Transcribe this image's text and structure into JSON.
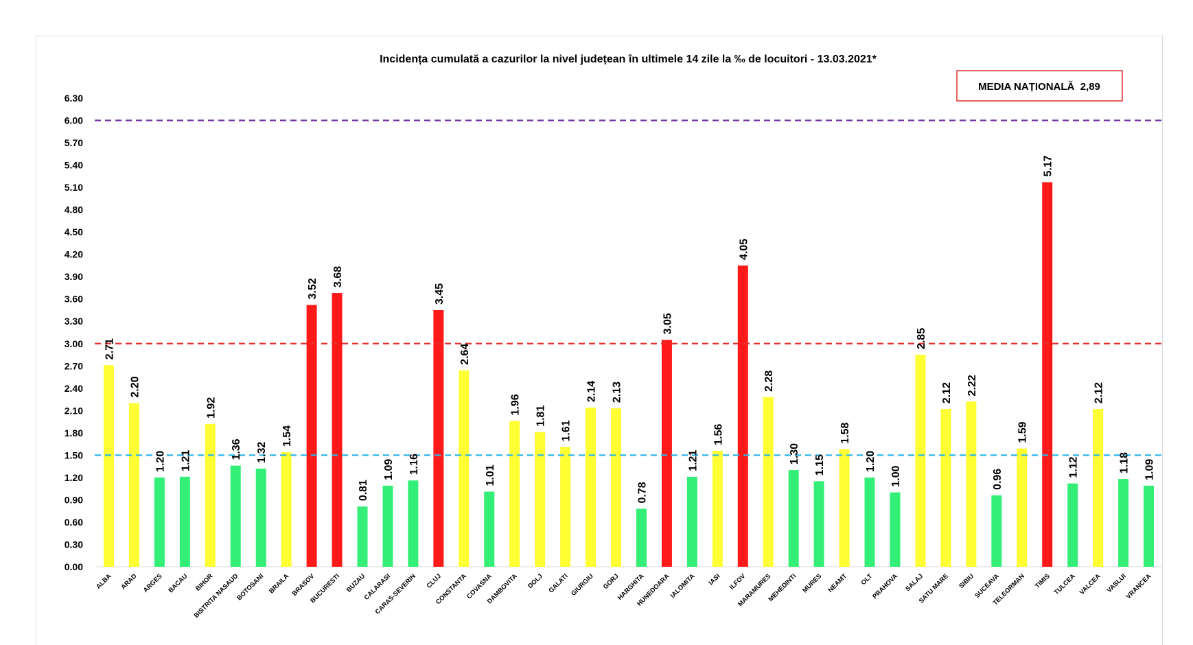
{
  "chart_data": {
    "type": "bar",
    "title": "Incidența cumulată a cazurilor la nivel județean în ultimele 14 zile la ‰ de locuitori - 13.03.2021*",
    "xlabel": "",
    "ylabel": "",
    "ylim": [
      0,
      6.3
    ],
    "yticks": [
      "0.00",
      "0.30",
      "0.60",
      "0.90",
      "1.20",
      "1.50",
      "1.80",
      "2.10",
      "2.40",
      "2.70",
      "3.00",
      "3.30",
      "3.60",
      "3.90",
      "4.20",
      "4.50",
      "4.80",
      "5.10",
      "5.40",
      "5.70",
      "6.00",
      "6.30"
    ],
    "grid": false,
    "annotation": "MEDIA NAȚIONALĂ  2,89",
    "reference_lines": [
      {
        "value": 6.0,
        "color": "#7030a0"
      },
      {
        "value": 3.0,
        "color": "#e62e2e"
      },
      {
        "value": 1.5,
        "color": "#29b6e8"
      }
    ],
    "level_colors": {
      "green": "#33ee77",
      "yellow": "#ffff33",
      "red": "#ff1a1a"
    },
    "categories": [
      "ALBA",
      "ARAD",
      "ARGES",
      "BACAU",
      "BIHOR",
      "BISTRITA NASAUD",
      "BOTOSANI",
      "BRAILA",
      "BRASOV",
      "BUCURESTI",
      "BUZAU",
      "CALARASI",
      "CARAS-SEVERIN",
      "CLUJ",
      "CONSTANTA",
      "COVASNA",
      "DAMBOVITA",
      "DOLJ",
      "GALATI",
      "GIURGIU",
      "GORJ",
      "HARGHITA",
      "HUNEDOARA",
      "IALOMITA",
      "IASI",
      "ILFOV",
      "MARAMURES",
      "MEHEDINTI",
      "MURES",
      "NEAMT",
      "OLT",
      "PRAHOVA",
      "SALAJ",
      "SATU MARE",
      "SIBIU",
      "SUCEAVA",
      "TELEORMAN",
      "TIMIS",
      "TULCEA",
      "VALCEA",
      "VASLUI",
      "VRANCEA"
    ],
    "values": [
      2.71,
      2.2,
      1.2,
      1.21,
      1.92,
      1.36,
      1.32,
      1.54,
      3.52,
      3.68,
      0.81,
      1.09,
      1.16,
      3.45,
      2.64,
      1.01,
      1.96,
      1.81,
      1.61,
      2.14,
      2.13,
      0.78,
      3.05,
      1.21,
      1.56,
      4.05,
      2.28,
      1.3,
      1.15,
      1.58,
      1.2,
      1.0,
      2.85,
      2.12,
      2.22,
      0.96,
      1.59,
      5.17,
      1.12,
      2.12,
      1.18,
      1.09
    ],
    "data_labels": [
      "2.71",
      "2.20",
      "1.20",
      "1.21",
      "1.92",
      "1.36",
      "1.32",
      "1.54",
      "3.52",
      "3.68",
      "0.81",
      "1.09",
      "1.16",
      "3.45",
      "2.64",
      "1.01",
      "1.96",
      "1.81",
      "1.61",
      "2.14",
      "2.13",
      "0.78",
      "3.05",
      "1.21",
      "1.56",
      "4.05",
      "2.28",
      "1.30",
      "1.15",
      "1.58",
      "1.20",
      "1.00",
      "2.85",
      "2.12",
      "2.22",
      "0.96",
      "1.59",
      "5.17",
      "1.12",
      "2.12",
      "1.18",
      "1.09"
    ]
  }
}
